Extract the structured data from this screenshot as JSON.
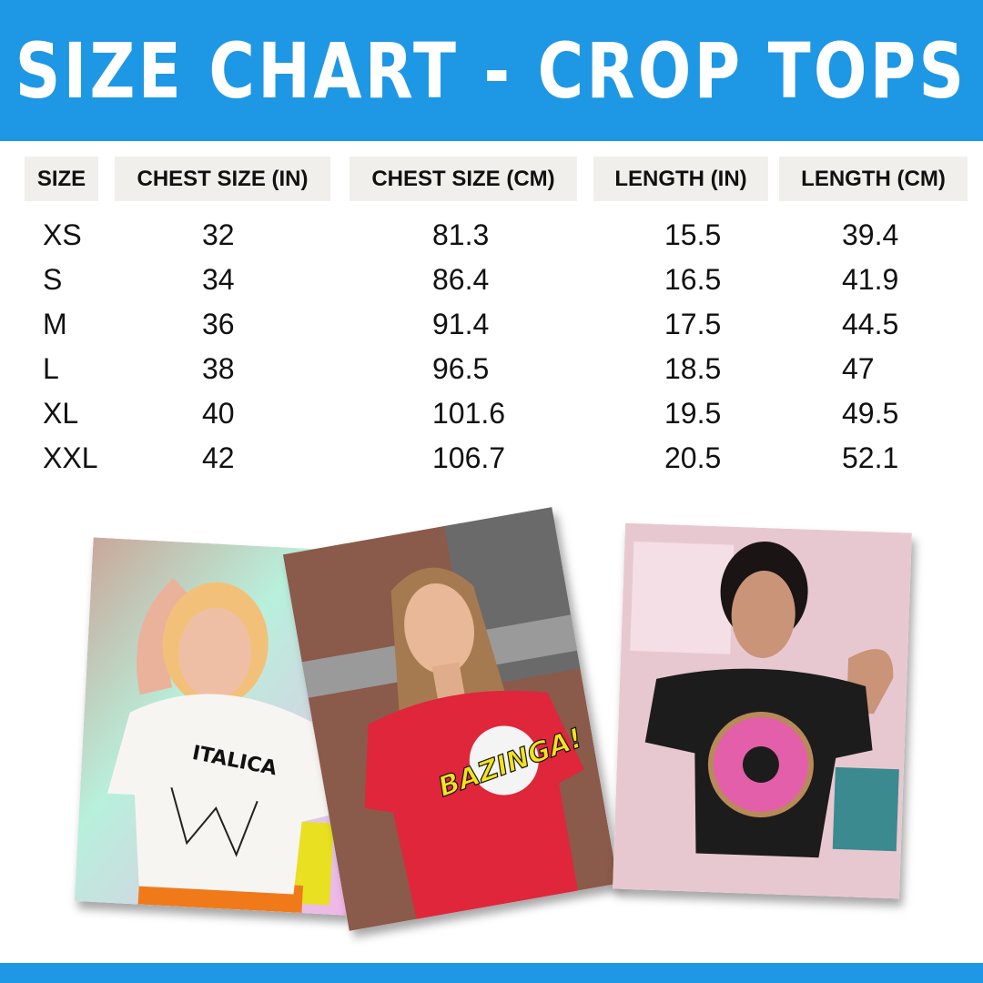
{
  "title": "SIZE CHART - CROP TOPS",
  "table": {
    "headers": [
      "SIZE",
      "CHEST SIZE (IN)",
      "CHEST SIZE (CM)",
      "LENGTH (IN)",
      "LENGTH (CM)"
    ],
    "rows": [
      [
        "XS",
        "32",
        "81.3",
        "15.5",
        "39.4"
      ],
      [
        "S",
        "34",
        "86.4",
        "16.5",
        "41.9"
      ],
      [
        "M",
        "36",
        "91.4",
        "17.5",
        "44.5"
      ],
      [
        "L",
        "38",
        "96.5",
        "18.5",
        "47"
      ],
      [
        "XL",
        "40",
        "101.6",
        "19.5",
        "49.5"
      ],
      [
        "XXL",
        "42",
        "106.7",
        "20.5",
        "52.1"
      ]
    ]
  },
  "photos": [
    {
      "shirt_print": "ITALICA",
      "shirt_color": "#f7f5f2"
    },
    {
      "shirt_print": "BAZINGA!",
      "shirt_color": "#e0263a"
    },
    {
      "shirt_print": "donut",
      "shirt_color": "#1c1c1c"
    }
  ],
  "colors": {
    "brand_blue": "#1e98e4",
    "header_cell_bg": "#f0efeb"
  }
}
